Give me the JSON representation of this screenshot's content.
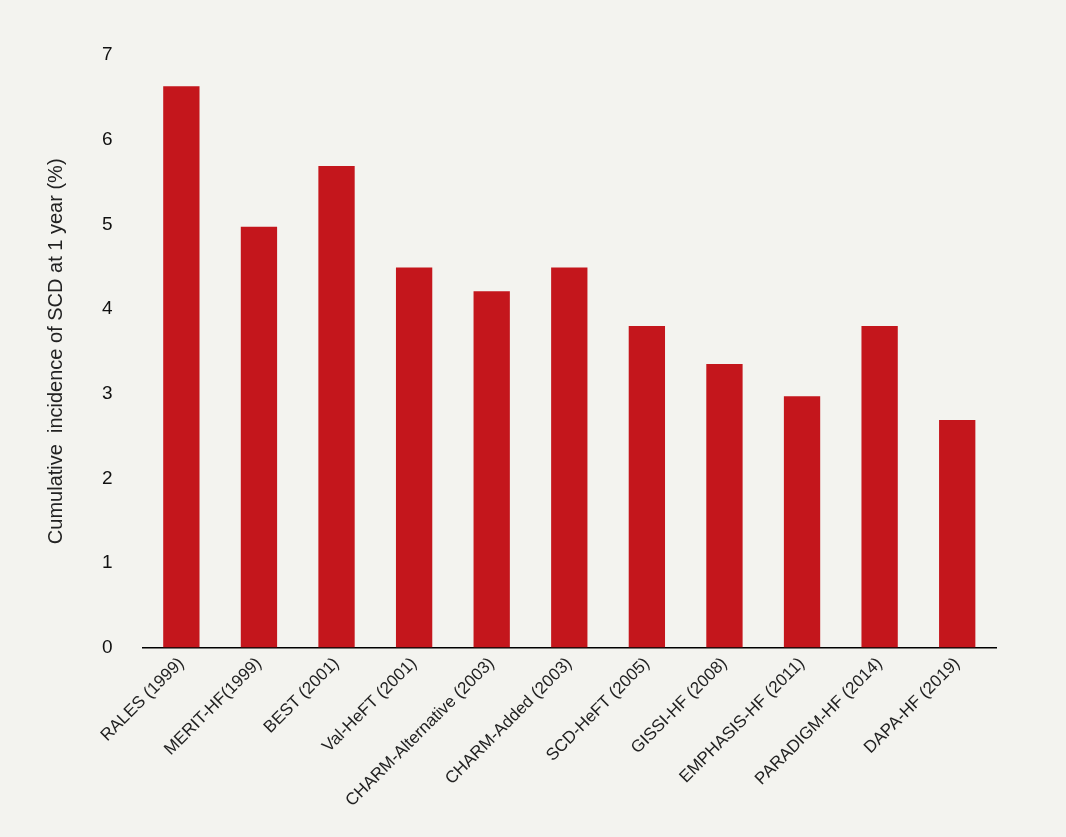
{
  "chart_data": {
    "type": "bar",
    "y_label": "Cumulative  incidence of SCD at 1 year (%)",
    "categories": [
      "RALES (1999)",
      "MERIT-HF(1999)",
      "BEST (2001)",
      "Val-HeFT (2001)",
      "CHARM-Alternative (2003)",
      "CHARM-Added (2003)",
      "SCD-HeFT (2005)",
      "GISSI-HF (2008)",
      "EMPHASIS-HF (2011)",
      "PARADIGM-HF (2014)",
      "DAPA-HF (2019)"
    ],
    "values": [
      6.63,
      4.97,
      5.69,
      4.49,
      4.21,
      4.49,
      3.8,
      3.35,
      2.97,
      3.8,
      2.69
    ],
    "color": "#c4161c",
    "ylim": [
      0,
      7
    ],
    "yticks": [
      0,
      1,
      2,
      3,
      4,
      5,
      6,
      7
    ],
    "grid": false
  }
}
